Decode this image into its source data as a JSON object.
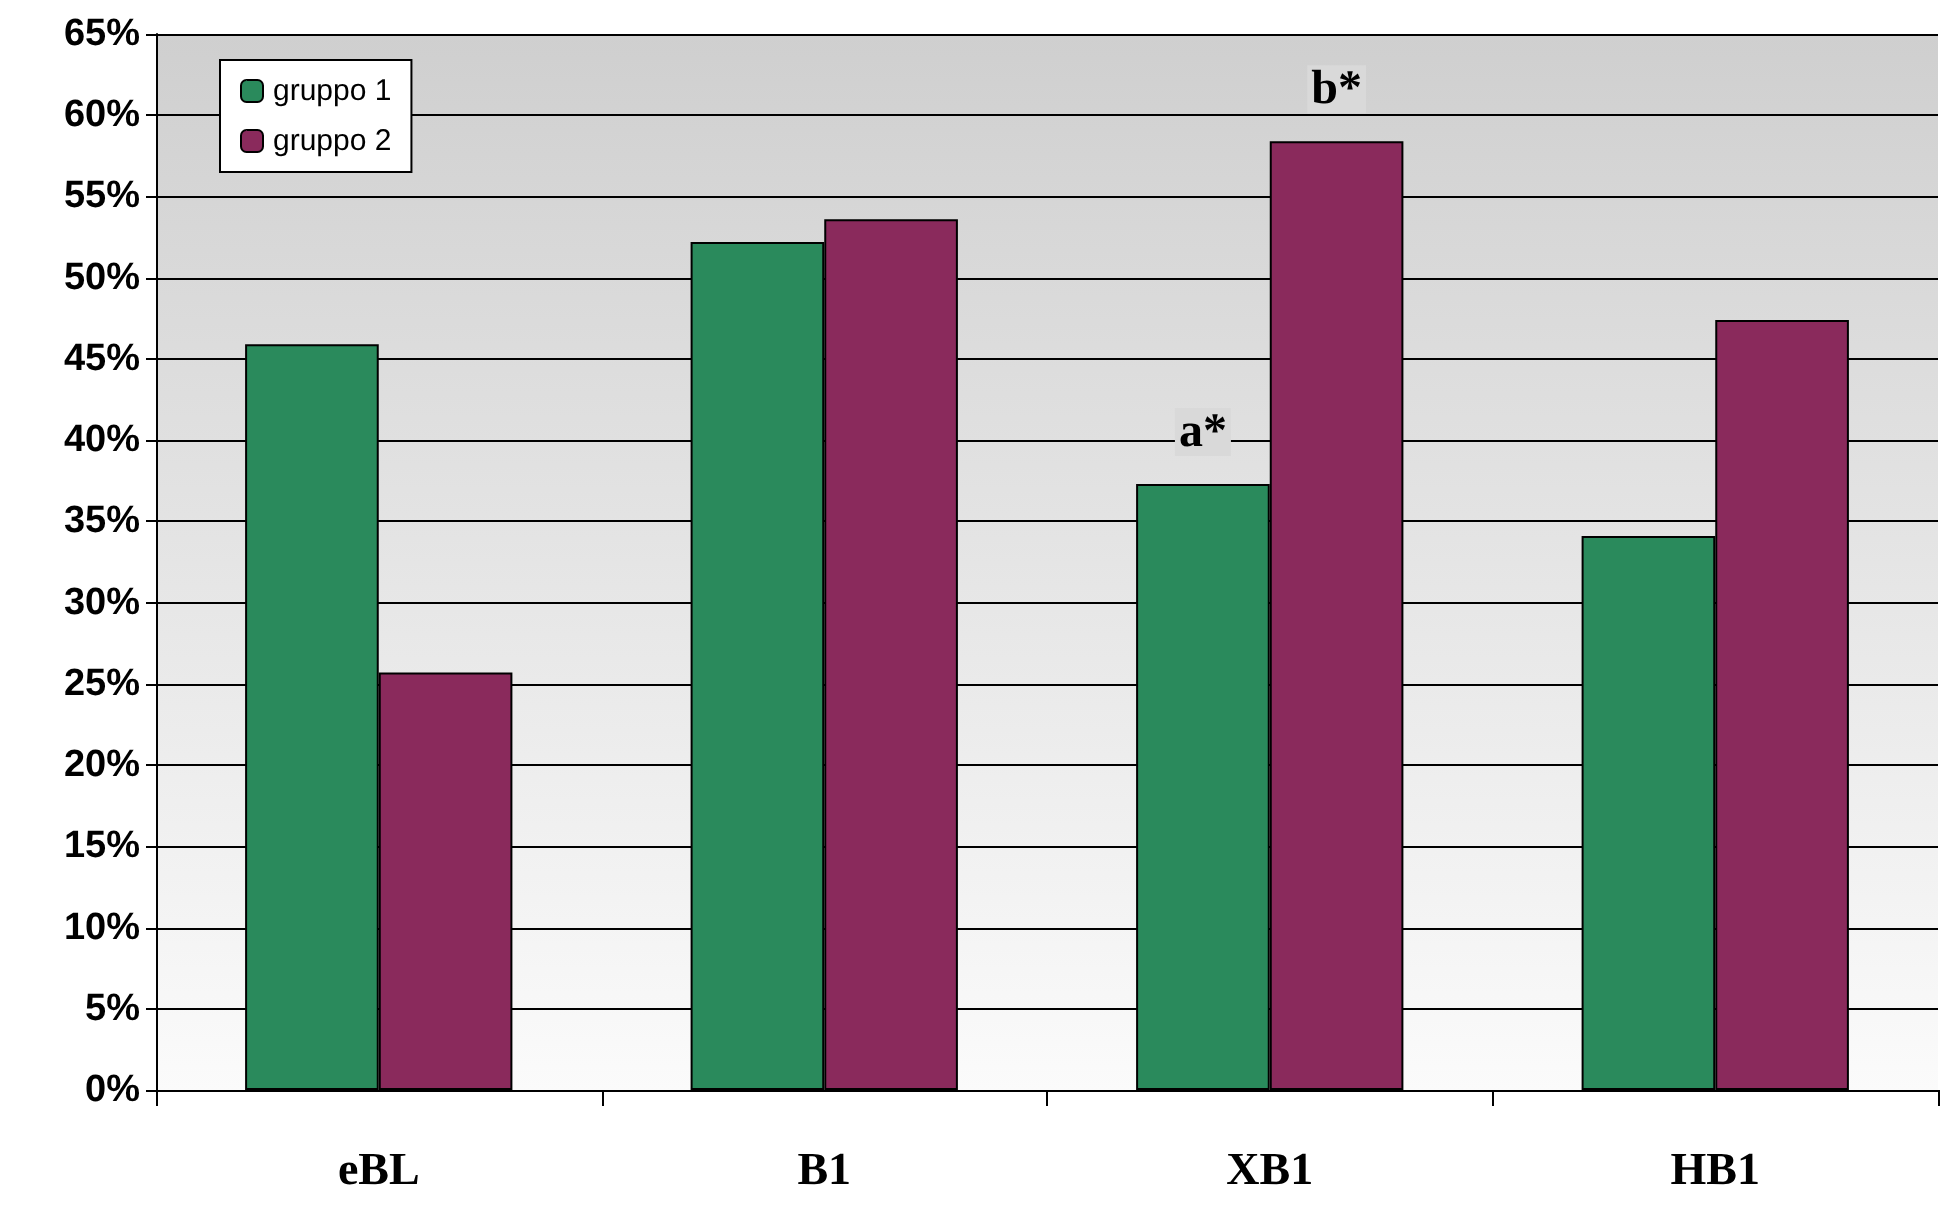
{
  "chart_data": {
    "type": "bar",
    "categories": [
      "eBL",
      "B1",
      "XB1",
      "HB1"
    ],
    "series": [
      {
        "name": "gruppo 1",
        "color": "#2a8a5c",
        "values": [
          45.9,
          52.2,
          37.3,
          34.1
        ]
      },
      {
        "name": "gruppo 2",
        "color": "#8a2a5c",
        "values": [
          25.7,
          53.6,
          58.4,
          47.4
        ]
      }
    ],
    "ylim": [
      0,
      65
    ],
    "yticks": [
      {
        "value": 0,
        "label": "0%"
      },
      {
        "value": 5,
        "label": "5%"
      },
      {
        "value": 10,
        "label": "10%"
      },
      {
        "value": 15,
        "label": "15%"
      },
      {
        "value": 20,
        "label": "20%"
      },
      {
        "value": 25,
        "label": "25%"
      },
      {
        "value": 30,
        "label": "30%"
      },
      {
        "value": 35,
        "label": "35%"
      },
      {
        "value": 40,
        "label": "40%"
      },
      {
        "value": 45,
        "label": "45%"
      },
      {
        "value": 50,
        "label": "50%"
      },
      {
        "value": 55,
        "label": "55%"
      },
      {
        "value": 60,
        "label": "60%"
      },
      {
        "value": 65,
        "label": "65%"
      }
    ],
    "annotations": [
      {
        "text": "a*",
        "x": "XB1",
        "y": 37.3
      },
      {
        "text": "b*",
        "x": "XB1",
        "y": 58.4
      }
    ],
    "grid": "y",
    "legend": "top left"
  }
}
